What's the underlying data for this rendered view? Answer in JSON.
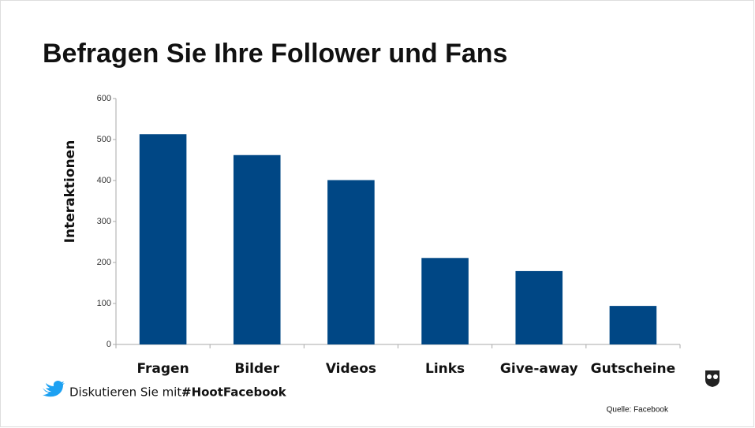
{
  "chart_data": {
    "type": "bar",
    "title": "Befragen Sie Ihre Follower und Fans",
    "y_label": "Interaktionen",
    "categories": [
      "Fragen",
      "Bilder",
      "Videos",
      "Links",
      "Give-away",
      "Gutscheine"
    ],
    "values": [
      513,
      462,
      401,
      211,
      179,
      94
    ],
    "color": "#004785",
    "ylim": [
      0,
      600
    ],
    "yticks": [
      0,
      100,
      200,
      300,
      400,
      500,
      600
    ],
    "grid": false
  },
  "footer": {
    "discuss": "Diskutieren Sie mit:",
    "hashtag": "#HootFacebook",
    "source": "Quelle: Facebook"
  }
}
